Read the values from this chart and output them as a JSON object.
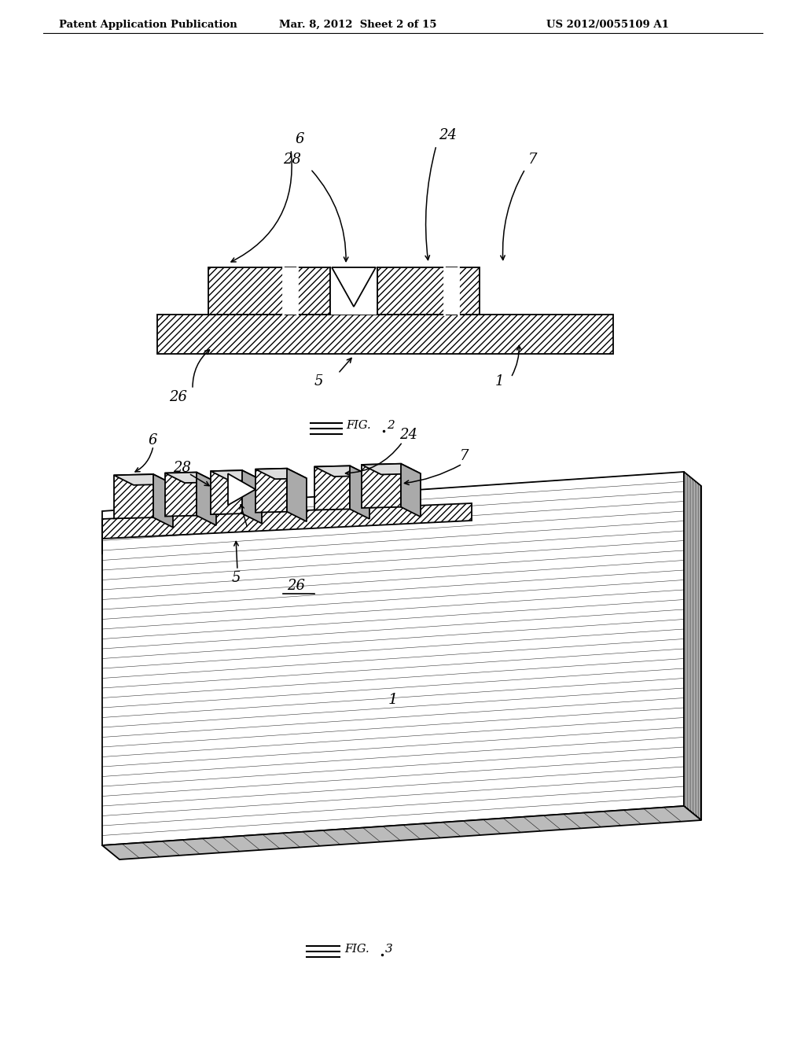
{
  "bg_color": "#ffffff",
  "title_line1": "Patent Application Publication",
  "title_line2": "Mar. 8, 2012  Sheet 2 of 15",
  "title_line3": "US 2012/0055109 A1",
  "hatch_color": "#000000"
}
